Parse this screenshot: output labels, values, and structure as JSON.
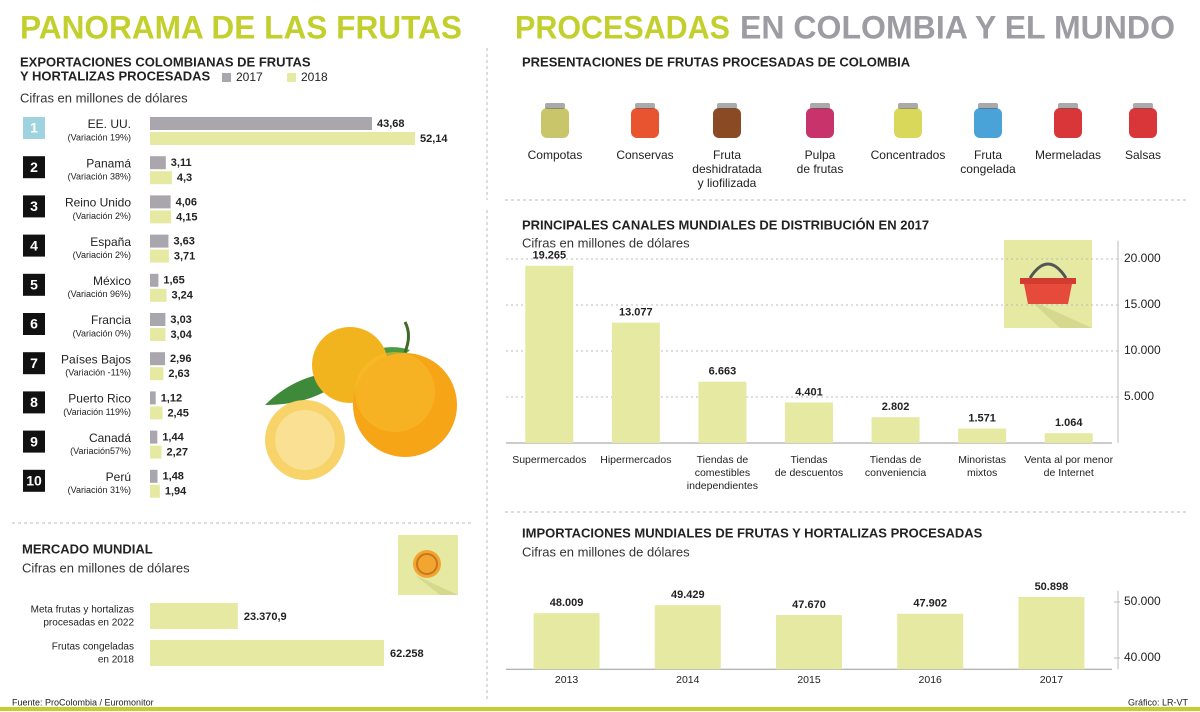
{
  "header": {
    "title_left": "PANORAMA DE LAS FRUTAS",
    "title_highlight": "PROCESADAS",
    "title_rest": "EN COLOMBIA Y EL MUNDO"
  },
  "chart_data": [
    {
      "type": "hbar-grouped",
      "title": [
        "EXPORTACIONES COLOMBIANAS DE FRUTAS",
        "Y HORTALIZAS PROCESADAS"
      ],
      "subtitle": "Cifras en millones de dólares",
      "ranks": [
        1,
        2,
        3,
        4,
        5,
        6,
        7,
        8,
        9,
        10
      ],
      "categories": [
        "EE. UU.",
        "Panamá",
        "Reino Unido",
        "España",
        "México",
        "Francia",
        "Países Bajos",
        "Puerto Rico",
        "Canadá",
        "Perú"
      ],
      "notes": [
        "(Variación 19%)",
        "(Variación 38%)",
        "(Variación 2%)",
        "(Variación 2%)",
        "(Variación 96%)",
        "(Variación 0%)",
        "(Variación -11%)",
        "(Variación 119%)",
        "(Variación57%)",
        "(Variación 31%)"
      ],
      "series": [
        {
          "name": "2017",
          "color": "#a9a7ad",
          "values": [
            43.68,
            3.11,
            4.06,
            3.63,
            1.65,
            3.03,
            2.96,
            1.12,
            1.44,
            1.48
          ],
          "value_labels": [
            "43,68",
            "3,11",
            "4,06",
            "3,63",
            "1,65",
            "3,03",
            "2,96",
            "1,12",
            "1,44",
            "1,48"
          ]
        },
        {
          "name": "2018",
          "color": "#e6e9a2",
          "values": [
            52.14,
            4.3,
            4.15,
            3.71,
            3.24,
            3.04,
            2.63,
            2.45,
            2.27,
            1.94
          ],
          "value_labels": [
            "52,14",
            "4,3",
            "4,15",
            "3,71",
            "3,24",
            "3,04",
            "2,63",
            "2,45",
            "2,27",
            "1,94"
          ]
        }
      ]
    },
    {
      "type": "hbar",
      "title": "MERCADO MUNDIAL",
      "subtitle": "Cifras en millones de dólares",
      "categories": [
        [
          "Meta frutas y hortalizas",
          "procesadas en 2022"
        ],
        [
          "Frutas congeladas",
          "en 2018"
        ]
      ],
      "values": [
        23370.9,
        62258
      ],
      "value_labels": [
        "23.370,9",
        "62.258"
      ],
      "color": "#e6e9a2"
    },
    {
      "type": "icons",
      "title": "PRESENTACIONES DE FRUTAS PROCESADAS DE COLOMBIA",
      "categories": [
        [
          "Compotas"
        ],
        [
          "Conservas"
        ],
        [
          "Fruta",
          "deshidratada",
          "y liofilizada"
        ],
        [
          "Pulpa",
          "de frutas"
        ],
        [
          "Concentrados"
        ],
        [
          "Fruta",
          "congelada"
        ],
        [
          "Mermeladas"
        ],
        [
          "Salsas"
        ]
      ]
    },
    {
      "type": "bar",
      "title": "PRINCIPALES CANALES MUNDIALES DE DISTRIBUCIÓN EN 2017",
      "subtitle": "Cifras en millones de dólares",
      "categories": [
        [
          "Supermercados"
        ],
        [
          "Hipermercados"
        ],
        [
          "Tiendas de",
          "comestibles",
          "independientes"
        ],
        [
          "Tiendas",
          "de descuentos"
        ],
        [
          "Tiendas de",
          "conveniencia"
        ],
        [
          "Minoristas",
          "mixtos"
        ],
        [
          "Venta al por menor",
          "de Internet"
        ]
      ],
      "values": [
        19265,
        13077,
        6663,
        4401,
        2802,
        1571,
        1064
      ],
      "value_labels": [
        "19.265",
        "13.077",
        "6.663",
        "4.401",
        "2.802",
        "1.571",
        "1.064"
      ],
      "color": "#e6e9a2",
      "ylim": [
        0,
        22000
      ],
      "yticks": [
        {
          "value": 5000,
          "label": "5.000"
        },
        {
          "value": 10000,
          "label": "10.000"
        },
        {
          "value": 15000,
          "label": "15.000"
        },
        {
          "value": 20000,
          "label": "20.000"
        }
      ],
      "grid": true
    },
    {
      "type": "bar",
      "title": "IMPORTACIONES MUNDIALES DE FRUTAS Y HORTALIZAS PROCESADAS",
      "subtitle": "Cifras en millones de dólares",
      "categories": [
        [
          "2013"
        ],
        [
          "2014"
        ],
        [
          "2015"
        ],
        [
          "2016"
        ],
        [
          "2017"
        ]
      ],
      "values": [
        48009,
        49429,
        47670,
        47902,
        50898
      ],
      "value_labels": [
        "48.009",
        "49.429",
        "47.670",
        "47.902",
        "50.898"
      ],
      "color": "#e6e9a2",
      "ylim": [
        38000,
        52000
      ],
      "yticks": [
        {
          "value": 40000,
          "label": "40.000"
        },
        {
          "value": 50000,
          "label": "50.000"
        }
      ],
      "grid": false
    }
  ],
  "footer": {
    "source": "Fuente: ProColombia / Euromonitor",
    "credit": "Gráfico: LR-VT"
  }
}
